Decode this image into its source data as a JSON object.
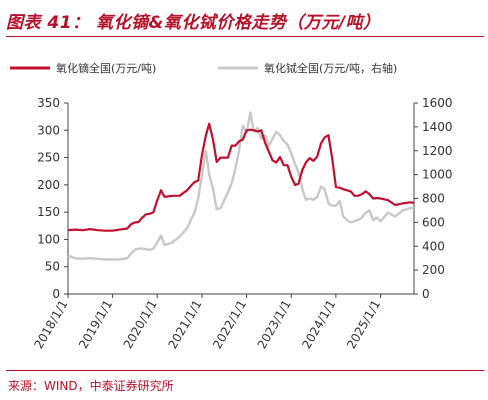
{
  "title": "图表 41：  氧化镝&氧化铽价格走势（万元/吨）",
  "source": "来源：WIND，中泰证券研究所",
  "colors": {
    "accent": "#b8122a",
    "series_left": "#c0102e",
    "series_right": "#c8c8c8"
  },
  "chart_data": {
    "type": "line",
    "title": "氧化镝&氧化铽价格走势（万元/吨）",
    "x_tick_labels": [
      "2018/1/1",
      "2019/1/1",
      "2020/1/1",
      "2021/1/1",
      "2022/1/1",
      "2023/1/1",
      "2024/1/1",
      "2025/1/1"
    ],
    "xlim": [
      "2018-01-01",
      "2025-10-01"
    ],
    "y_left": {
      "min": 0,
      "max": 350,
      "ticks": [
        0,
        50,
        100,
        150,
        200,
        250,
        300,
        350
      ]
    },
    "y_right": {
      "min": 0,
      "max": 1600,
      "ticks": [
        0,
        200,
        400,
        600,
        800,
        1000,
        1200,
        1400,
        1600
      ]
    },
    "legend": {
      "position": "top"
    },
    "series": [
      {
        "name": "氧化镝全国(万元/吨)",
        "axis": "left",
        "points": [
          [
            "2018-01-01",
            117
          ],
          [
            "2018-03-01",
            118
          ],
          [
            "2018-05-01",
            117
          ],
          [
            "2018-07-01",
            119
          ],
          [
            "2018-09-01",
            117
          ],
          [
            "2018-11-01",
            116
          ],
          [
            "2019-01-01",
            116
          ],
          [
            "2019-03-01",
            118
          ],
          [
            "2019-05-01",
            120
          ],
          [
            "2019-06-01",
            128
          ],
          [
            "2019-07-01",
            131
          ],
          [
            "2019-08-01",
            132
          ],
          [
            "2019-09-01",
            140
          ],
          [
            "2019-10-01",
            146
          ],
          [
            "2019-11-01",
            147
          ],
          [
            "2019-12-01",
            150
          ],
          [
            "2020-01-01",
            172
          ],
          [
            "2020-02-01",
            190
          ],
          [
            "2020-03-01",
            178
          ],
          [
            "2020-05-01",
            180
          ],
          [
            "2020-07-01",
            180
          ],
          [
            "2020-09-01",
            190
          ],
          [
            "2020-10-01",
            198
          ],
          [
            "2020-11-01",
            205
          ],
          [
            "2020-12-01",
            208
          ],
          [
            "2021-01-01",
            255
          ],
          [
            "2021-02-01",
            290
          ],
          [
            "2021-03-01",
            312
          ],
          [
            "2021-04-01",
            283
          ],
          [
            "2021-05-01",
            242
          ],
          [
            "2021-06-01",
            250
          ],
          [
            "2021-08-01",
            250
          ],
          [
            "2021-09-01",
            272
          ],
          [
            "2021-10-01",
            272
          ],
          [
            "2021-11-01",
            280
          ],
          [
            "2021-12-01",
            283
          ],
          [
            "2022-01-01",
            300
          ],
          [
            "2022-02-01",
            301
          ],
          [
            "2022-03-01",
            300
          ],
          [
            "2022-04-01",
            298
          ],
          [
            "2022-05-01",
            300
          ],
          [
            "2022-06-01",
            277
          ],
          [
            "2022-07-01",
            261
          ],
          [
            "2022-08-01",
            245
          ],
          [
            "2022-09-01",
            241
          ],
          [
            "2022-10-01",
            251
          ],
          [
            "2022-11-01",
            236
          ],
          [
            "2022-12-01",
            236
          ],
          [
            "2023-01-01",
            215
          ],
          [
            "2023-02-01",
            200
          ],
          [
            "2023-03-01",
            202
          ],
          [
            "2023-04-01",
            227
          ],
          [
            "2023-05-01",
            241
          ],
          [
            "2023-06-01",
            249
          ],
          [
            "2023-07-01",
            244
          ],
          [
            "2023-08-01",
            252
          ],
          [
            "2023-09-01",
            276
          ],
          [
            "2023-10-01",
            287
          ],
          [
            "2023-11-01",
            291
          ],
          [
            "2023-12-01",
            250
          ],
          [
            "2024-01-01",
            196
          ],
          [
            "2024-02-01",
            195
          ],
          [
            "2024-03-01",
            192
          ],
          [
            "2024-04-01",
            190
          ],
          [
            "2024-05-01",
            188
          ],
          [
            "2024-06-01",
            180
          ],
          [
            "2024-07-01",
            180
          ],
          [
            "2024-08-01",
            183
          ],
          [
            "2024-09-01",
            188
          ],
          [
            "2024-10-01",
            183
          ],
          [
            "2024-11-01",
            175
          ],
          [
            "2024-12-01",
            176
          ],
          [
            "2025-01-01",
            175
          ],
          [
            "2025-03-01",
            172
          ],
          [
            "2025-05-01",
            163
          ],
          [
            "2025-07-01",
            166
          ],
          [
            "2025-09-01",
            168
          ],
          [
            "2025-10-01",
            167
          ]
        ]
      },
      {
        "name": "氧化铽全国(万元/吨，右轴)",
        "axis": "right",
        "points": [
          [
            "2018-01-01",
            320
          ],
          [
            "2018-03-01",
            300
          ],
          [
            "2018-05-01",
            295
          ],
          [
            "2018-07-01",
            300
          ],
          [
            "2018-09-01",
            295
          ],
          [
            "2018-11-01",
            290
          ],
          [
            "2019-01-01",
            290
          ],
          [
            "2019-03-01",
            290
          ],
          [
            "2019-05-01",
            300
          ],
          [
            "2019-06-01",
            340
          ],
          [
            "2019-07-01",
            370
          ],
          [
            "2019-08-01",
            380
          ],
          [
            "2019-09-01",
            380
          ],
          [
            "2019-10-01",
            375
          ],
          [
            "2019-11-01",
            370
          ],
          [
            "2019-12-01",
            380
          ],
          [
            "2020-01-01",
            435
          ],
          [
            "2020-02-01",
            490
          ],
          [
            "2020-03-01",
            410
          ],
          [
            "2020-05-01",
            430
          ],
          [
            "2020-07-01",
            480
          ],
          [
            "2020-09-01",
            550
          ],
          [
            "2020-10-01",
            620
          ],
          [
            "2020-11-01",
            680
          ],
          [
            "2020-12-01",
            800
          ],
          [
            "2021-01-01",
            1000
          ],
          [
            "2021-02-01",
            1200
          ],
          [
            "2021-03-01",
            1000
          ],
          [
            "2021-04-01",
            880
          ],
          [
            "2021-05-01",
            710
          ],
          [
            "2021-06-01",
            720
          ],
          [
            "2021-08-01",
            850
          ],
          [
            "2021-09-01",
            930
          ],
          [
            "2021-10-01",
            1050
          ],
          [
            "2021-11-01",
            1210
          ],
          [
            "2021-12-01",
            1410
          ],
          [
            "2022-01-01",
            1350
          ],
          [
            "2022-02-01",
            1520
          ],
          [
            "2022-03-01",
            1360
          ],
          [
            "2022-04-01",
            1390
          ],
          [
            "2022-05-01",
            1300
          ],
          [
            "2022-06-01",
            1330
          ],
          [
            "2022-07-01",
            1240
          ],
          [
            "2022-08-01",
            1300
          ],
          [
            "2022-09-01",
            1360
          ],
          [
            "2022-10-01",
            1330
          ],
          [
            "2022-11-01",
            1280
          ],
          [
            "2022-12-01",
            1250
          ],
          [
            "2023-01-01",
            1180
          ],
          [
            "2023-02-01",
            1090
          ],
          [
            "2023-03-01",
            1020
          ],
          [
            "2023-04-01",
            880
          ],
          [
            "2023-05-01",
            790
          ],
          [
            "2023-06-01",
            800
          ],
          [
            "2023-07-01",
            790
          ],
          [
            "2023-08-01",
            810
          ],
          [
            "2023-09-01",
            900
          ],
          [
            "2023-10-01",
            880
          ],
          [
            "2023-11-01",
            760
          ],
          [
            "2023-12-01",
            740
          ],
          [
            "2024-01-01",
            740
          ],
          [
            "2024-02-01",
            780
          ],
          [
            "2024-03-01",
            650
          ],
          [
            "2024-04-01",
            620
          ],
          [
            "2024-05-01",
            600
          ],
          [
            "2024-06-01",
            610
          ],
          [
            "2024-07-01",
            620
          ],
          [
            "2024-08-01",
            640
          ],
          [
            "2024-09-01",
            680
          ],
          [
            "2024-10-01",
            700
          ],
          [
            "2024-11-01",
            620
          ],
          [
            "2024-12-01",
            640
          ],
          [
            "2025-01-01",
            610
          ],
          [
            "2025-03-01",
            680
          ],
          [
            "2025-05-01",
            650
          ],
          [
            "2025-07-01",
            700
          ],
          [
            "2025-09-01",
            720
          ],
          [
            "2025-10-01",
            720
          ]
        ]
      }
    ]
  }
}
